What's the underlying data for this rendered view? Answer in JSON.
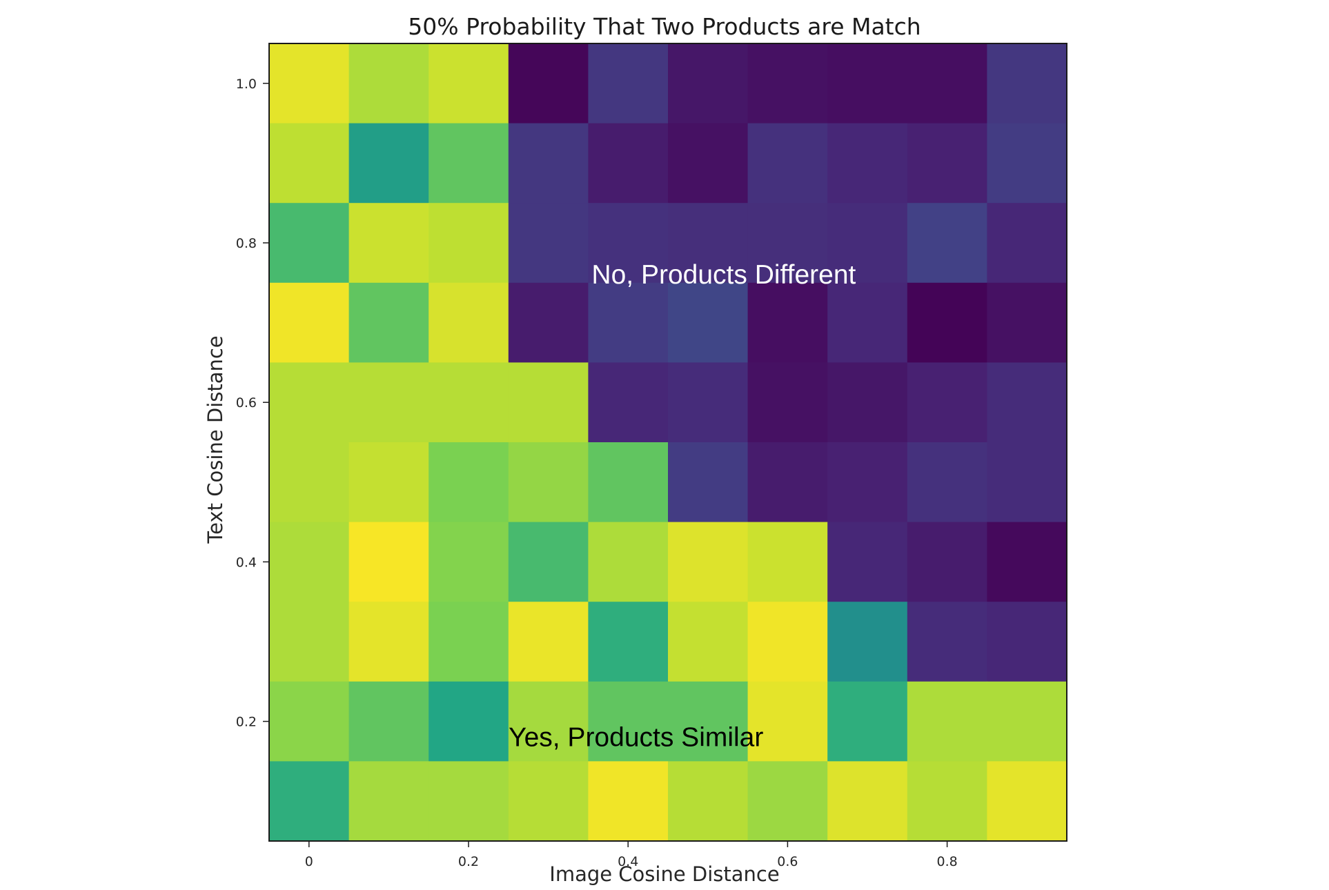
{
  "chart_data": {
    "type": "heatmap",
    "title": "50% Probability That Two Products are Match",
    "xlabel": "Image Cosine Distance",
    "ylabel": "Text Cosine Distance",
    "xlim": [
      -0.05,
      0.95
    ],
    "ylim": [
      0.05,
      1.05
    ],
    "x_ticks": [
      {
        "value": 0,
        "label": "0"
      },
      {
        "value": 0.2,
        "label": "0.2"
      },
      {
        "value": 0.4,
        "label": "0.4"
      },
      {
        "value": 0.6,
        "label": "0.6"
      },
      {
        "value": 0.8,
        "label": "0.8"
      }
    ],
    "y_ticks": [
      {
        "value": 0.2,
        "label": "0.2"
      },
      {
        "value": 0.4,
        "label": "0.4"
      },
      {
        "value": 0.6,
        "label": "0.6"
      },
      {
        "value": 0.8,
        "label": "0.8"
      },
      {
        "value": 1.0,
        "label": "1.0"
      }
    ],
    "x": [
      0,
      0.1,
      0.2,
      0.3,
      0.4,
      0.5,
      0.6,
      0.7,
      0.8,
      0.9
    ],
    "y": [
      1.0,
      0.9,
      0.8,
      0.7,
      0.6,
      0.5,
      0.4,
      0.3,
      0.2,
      0.1
    ],
    "z": [
      [
        0.96,
        0.88,
        0.92,
        0.02,
        0.2,
        0.08,
        0.06,
        0.05,
        0.05,
        0.2
      ],
      [
        0.9,
        0.7,
        0.8,
        0.2,
        0.1,
        0.06,
        0.18,
        0.14,
        0.12,
        0.22
      ],
      [
        0.78,
        0.92,
        0.9,
        0.2,
        0.18,
        0.17,
        0.17,
        0.16,
        0.24,
        0.14
      ],
      [
        0.98,
        0.8,
        0.94,
        0.1,
        0.22,
        0.26,
        0.05,
        0.14,
        0.01,
        0.06
      ],
      [
        0.89,
        0.89,
        0.89,
        0.89,
        0.14,
        0.16,
        0.06,
        0.08,
        0.12,
        0.16
      ],
      [
        0.89,
        0.91,
        0.82,
        0.85,
        0.8,
        0.22,
        0.1,
        0.12,
        0.18,
        0.16
      ],
      [
        0.88,
        0.99,
        0.83,
        0.78,
        0.88,
        0.95,
        0.92,
        0.14,
        0.1,
        0.03
      ],
      [
        0.88,
        0.96,
        0.82,
        0.97,
        0.76,
        0.91,
        0.98,
        0.62,
        0.16,
        0.14
      ],
      [
        0.84,
        0.8,
        0.74,
        0.87,
        0.8,
        0.8,
        0.96,
        0.76,
        0.88,
        0.88
      ],
      [
        0.76,
        0.87,
        0.87,
        0.89,
        0.98,
        0.89,
        0.86,
        0.95,
        0.89,
        0.96
      ]
    ],
    "colormap": "viridis",
    "grid": false,
    "annotations": [
      {
        "text": "No, Products Different",
        "x": 0.52,
        "y": 0.76,
        "color": "#ffffff"
      },
      {
        "text": "Yes, Products Similar",
        "x": 0.41,
        "y": 0.18,
        "color": "#000000"
      }
    ]
  }
}
